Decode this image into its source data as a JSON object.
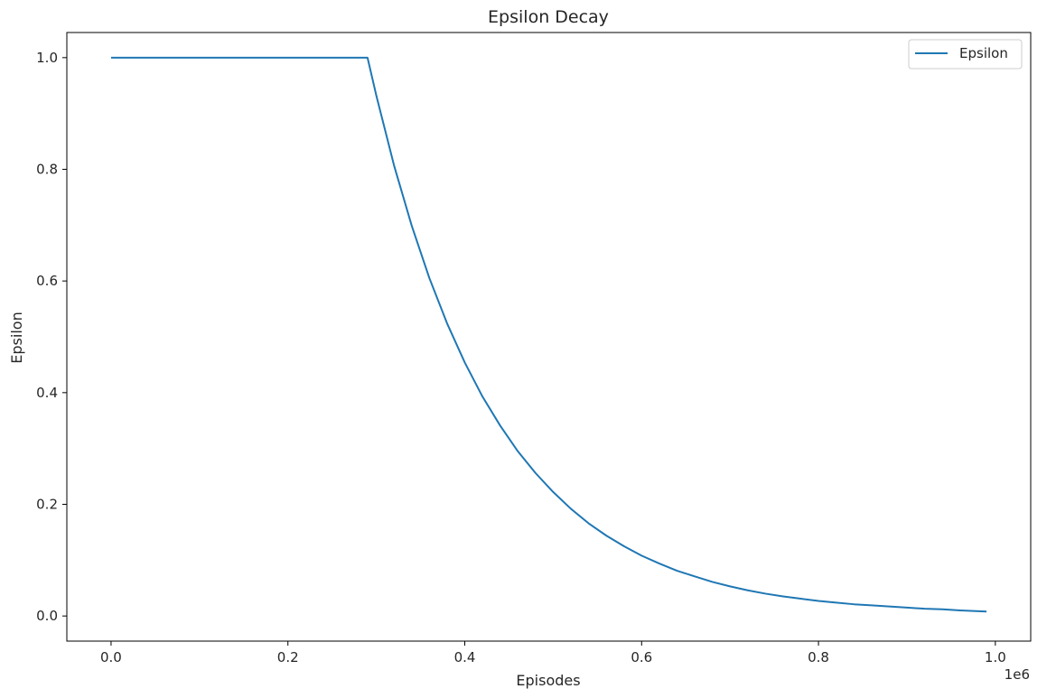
{
  "chart_data": {
    "type": "line",
    "title": "Epsilon Decay",
    "xlabel": "Episodes",
    "ylabel": "Epsilon",
    "x_offset_text": "1e6",
    "xlim": [
      -0.05,
      1.04
    ],
    "ylim": [
      -0.045,
      1.045
    ],
    "x_ticks": [
      0.0,
      0.2,
      0.4,
      0.6,
      0.8,
      1.0
    ],
    "x_tick_labels": [
      "0.0",
      "0.2",
      "0.4",
      "0.6",
      "0.8",
      "1.0"
    ],
    "y_ticks": [
      0.0,
      0.2,
      0.4,
      0.6,
      0.8,
      1.0
    ],
    "y_tick_labels": [
      "0.0",
      "0.2",
      "0.4",
      "0.6",
      "0.8",
      "1.0"
    ],
    "grid": false,
    "legend_position": "top-right",
    "series": [
      {
        "name": "Epsilon",
        "color": "#1f77b4",
        "x": [
          0.0,
          0.1,
          0.2,
          0.29,
          0.3,
          0.32,
          0.34,
          0.36,
          0.38,
          0.4,
          0.42,
          0.44,
          0.46,
          0.48,
          0.5,
          0.52,
          0.54,
          0.56,
          0.58,
          0.6,
          0.62,
          0.64,
          0.66,
          0.68,
          0.7,
          0.72,
          0.74,
          0.76,
          0.78,
          0.8,
          0.82,
          0.84,
          0.86,
          0.88,
          0.9,
          0.92,
          0.94,
          0.96,
          0.99
        ],
        "y": [
          1.0,
          1.0,
          1.0,
          1.0,
          0.932,
          0.807,
          0.699,
          0.605,
          0.524,
          0.454,
          0.393,
          0.341,
          0.295,
          0.256,
          0.222,
          0.192,
          0.166,
          0.144,
          0.125,
          0.108,
          0.094,
          0.081,
          0.071,
          0.061,
          0.053,
          0.046,
          0.04,
          0.035,
          0.031,
          0.027,
          0.024,
          0.021,
          0.019,
          0.017,
          0.015,
          0.013,
          0.012,
          0.01,
          0.008
        ]
      }
    ]
  }
}
